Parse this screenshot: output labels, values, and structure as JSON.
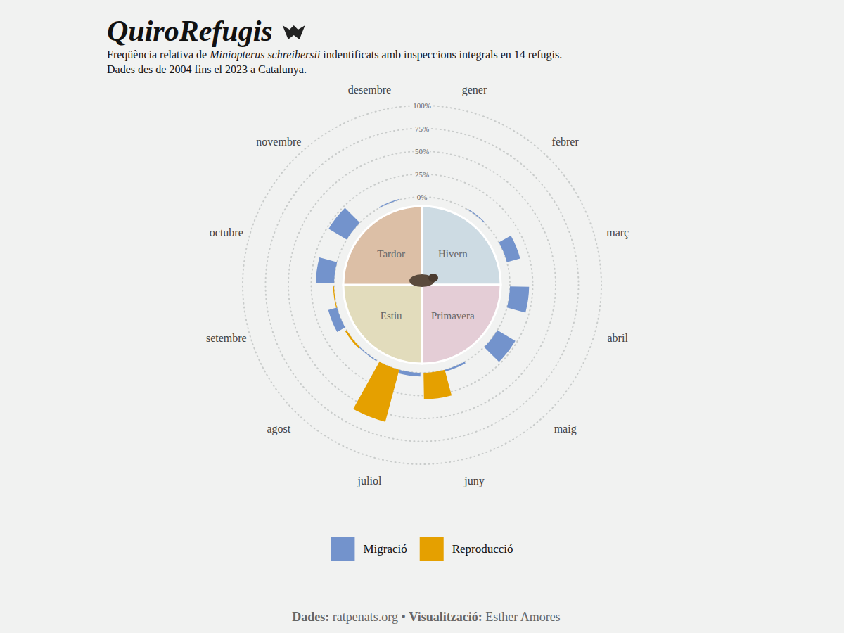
{
  "chart_data": {
    "type": "polar_bar",
    "title": "QuiroRefugis",
    "subtitle": [
      [
        "Freqüència relativa de ",
        "Miniopterus schreibersii",
        " indentificats amb inspeccions integrals en 14 refugis."
      ],
      [
        "Dades des de 2004 fins el 2023 a Catalunya."
      ]
    ],
    "categories": [
      "gener",
      "febrer",
      "març",
      "abril",
      "maig",
      "juny",
      "juliol",
      "agost",
      "setembre",
      "octubre",
      "novembre",
      "desembre"
    ],
    "series": [
      {
        "name": "Migració",
        "color": "#7393cc",
        "values": [
          0,
          1,
          15,
          21,
          23,
          2,
          4,
          1,
          10,
          20,
          23,
          1
        ]
      },
      {
        "name": "Reproducció",
        "color": "#e5a000",
        "values": [
          0,
          0,
          0,
          0,
          0,
          29,
          59,
          2,
          1,
          0,
          0,
          0
        ]
      }
    ],
    "ylim": [
      0,
      100
    ],
    "yticks": [
      {
        "value": 0,
        "label": "0%"
      },
      {
        "value": 25,
        "label": "25%"
      },
      {
        "value": 50,
        "label": "50%"
      },
      {
        "value": 75,
        "label": "75%"
      },
      {
        "value": 100,
        "label": "100%"
      }
    ],
    "grid": true,
    "legend": "bottom",
    "seasons": [
      {
        "label": "Hivern",
        "color": "#cddbe3"
      },
      {
        "label": "Primavera",
        "color": "#e4cdd6"
      },
      {
        "label": "Estiu",
        "color": "#e2dcbc"
      },
      {
        "label": "Tardor",
        "color": "#dcbfa6"
      }
    ],
    "caption": [
      {
        "label": "Dades:",
        "text": "ratpenats.org"
      },
      {
        "label": "Visualització:",
        "text": "Esther Amores"
      }
    ],
    "caption_separator": "•"
  }
}
